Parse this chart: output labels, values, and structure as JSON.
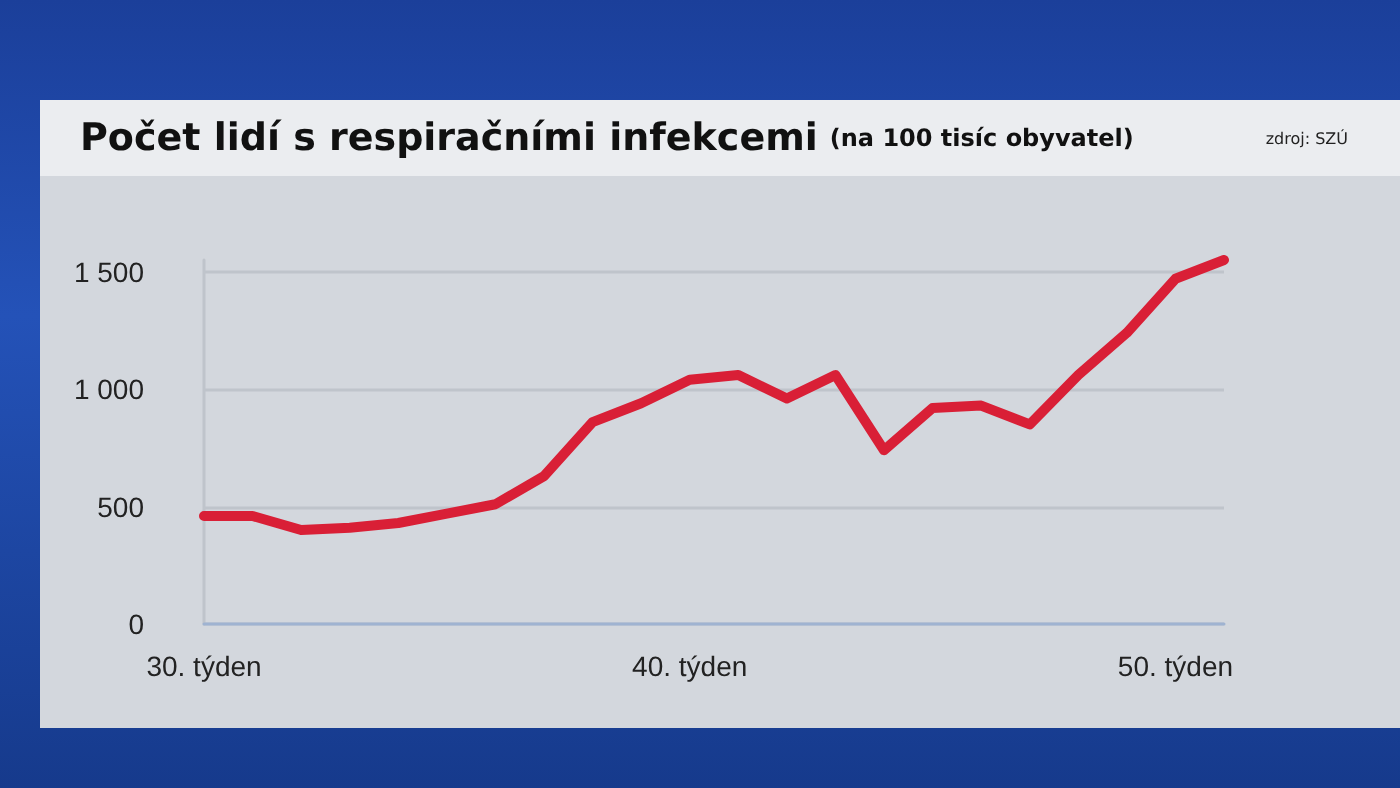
{
  "chart_data": {
    "type": "line",
    "title": "Počet lidí s respiračními infekcemi",
    "subtitle": "(na 100 tisíc obyvatel)",
    "annotations": [
      "zdroj: SZÚ"
    ],
    "x": [
      30,
      31,
      32,
      33,
      34,
      35,
      36,
      37,
      38,
      39,
      40,
      41,
      42,
      43,
      44,
      45,
      46,
      47,
      48,
      49,
      50,
      51
    ],
    "series": [
      {
        "color": "#d91f36",
        "values": [
          460,
          460,
          400,
          410,
          430,
          470,
          510,
          630,
          860,
          940,
          1040,
          1060,
          960,
          1060,
          740,
          920,
          930,
          850,
          1060,
          1240,
          1470,
          1550
        ]
      }
    ],
    "xlim": [
      30,
      51
    ],
    "xticks": [
      {
        "value": 30,
        "label": "30. týden"
      },
      {
        "value": 40,
        "label": "40. týden"
      },
      {
        "value": 50,
        "label": "50. týden"
      }
    ],
    "ylim": [
      0,
      1550
    ],
    "yticks": [
      0,
      500,
      {
        "value": 1000,
        "label": "1 000"
      },
      {
        "value": 1500,
        "label": "1 500"
      }
    ],
    "grid": "y",
    "marker": "none",
    "line_style": "solid"
  }
}
